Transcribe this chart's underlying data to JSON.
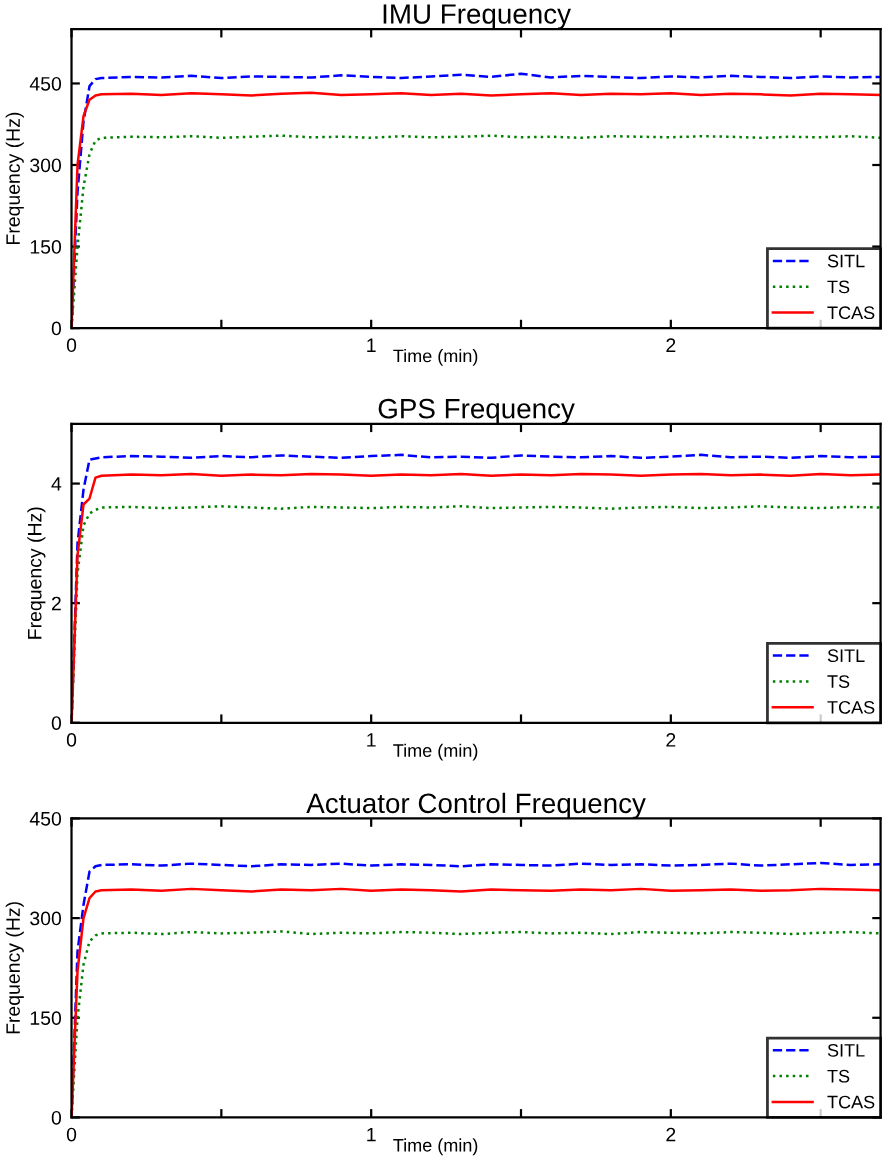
{
  "chart_data": [
    {
      "type": "line",
      "title": "IMU Frequency",
      "xlabel": "Time (min)",
      "ylabel": "Frequency (Hz)",
      "xlim": [
        0,
        2.7
      ],
      "xticks": [
        0,
        {
          "value": 0.5,
          "label": null
        },
        1,
        {
          "value": 1.5,
          "label": null
        },
        2,
        {
          "value": 2.5,
          "label": null
        }
      ],
      "ylim": [
        0,
        550
      ],
      "yticks": [
        0,
        150,
        300,
        450
      ],
      "legend": "bottom right",
      "grid": false,
      "x": [
        0,
        0.02,
        0.04,
        0.06,
        0.08,
        0.1,
        0.2,
        0.3,
        0.4,
        0.5,
        0.6,
        0.7,
        0.8,
        0.9,
        1.0,
        1.1,
        1.2,
        1.3,
        1.4,
        1.5,
        1.6,
        1.7,
        1.8,
        1.9,
        2.0,
        2.1,
        2.2,
        2.3,
        2.4,
        2.5,
        2.6,
        2.7
      ],
      "series": [
        {
          "name": "SITL",
          "color": "#0000ff",
          "line_style": "dashed",
          "values": [
            0,
            250,
            380,
            445,
            458,
            460,
            462,
            461,
            464,
            460,
            463,
            462,
            461,
            465,
            462,
            460,
            463,
            466,
            462,
            468,
            461,
            464,
            462,
            460,
            463,
            461,
            464,
            462,
            460,
            463,
            461,
            462
          ]
        },
        {
          "name": "TS",
          "color": "#008000",
          "line_style": "dotted",
          "values": [
            0,
            150,
            260,
            320,
            345,
            350,
            352,
            351,
            353,
            350,
            352,
            354,
            351,
            352,
            350,
            353,
            351,
            352,
            354,
            351,
            352,
            350,
            353,
            352,
            351,
            353,
            352,
            350,
            352,
            351,
            353,
            350
          ]
        },
        {
          "name": "TCAS",
          "color": "#ff0000",
          "line_style": "solid",
          "values": [
            0,
            300,
            390,
            420,
            428,
            430,
            431,
            429,
            432,
            430,
            428,
            431,
            433,
            429,
            430,
            432,
            429,
            431,
            428,
            430,
            432,
            429,
            431,
            430,
            432,
            429,
            431,
            430,
            428,
            431,
            430,
            429
          ]
        }
      ]
    },
    {
      "type": "line",
      "title": "GPS Frequency",
      "xlabel": "Time (min)",
      "ylabel": "Frequency (Hz)",
      "xlim": [
        0,
        2.7
      ],
      "xticks": [
        0,
        {
          "value": 0.5,
          "label": null
        },
        1,
        {
          "value": 1.5,
          "label": null
        },
        2,
        {
          "value": 2.5,
          "label": null
        }
      ],
      "ylim": [
        0,
        5
      ],
      "yticks": [
        0,
        2,
        4
      ],
      "legend": "bottom right",
      "grid": false,
      "x": [
        0,
        0.02,
        0.04,
        0.06,
        0.08,
        0.1,
        0.2,
        0.3,
        0.4,
        0.5,
        0.6,
        0.7,
        0.8,
        0.9,
        1.0,
        1.1,
        1.2,
        1.3,
        1.4,
        1.5,
        1.6,
        1.7,
        1.8,
        1.9,
        2.0,
        2.1,
        2.2,
        2.3,
        2.4,
        2.5,
        2.6,
        2.7
      ],
      "series": [
        {
          "name": "SITL",
          "color": "#0000ff",
          "line_style": "dashed",
          "values": [
            0,
            3.0,
            3.9,
            4.4,
            4.42,
            4.44,
            4.46,
            4.45,
            4.43,
            4.46,
            4.44,
            4.47,
            4.45,
            4.43,
            4.46,
            4.48,
            4.44,
            4.45,
            4.43,
            4.47,
            4.45,
            4.44,
            4.46,
            4.43,
            4.45,
            4.48,
            4.44,
            4.45,
            4.43,
            4.46,
            4.44,
            4.45
          ]
        },
        {
          "name": "TS",
          "color": "#008000",
          "line_style": "dotted",
          "values": [
            0,
            2.5,
            3.3,
            3.5,
            3.56,
            3.6,
            3.61,
            3.59,
            3.6,
            3.62,
            3.6,
            3.58,
            3.61,
            3.6,
            3.59,
            3.61,
            3.6,
            3.62,
            3.59,
            3.6,
            3.61,
            3.6,
            3.58,
            3.6,
            3.61,
            3.59,
            3.6,
            3.62,
            3.6,
            3.59,
            3.61,
            3.6
          ]
        },
        {
          "name": "TCAS",
          "color": "#ff0000",
          "line_style": "solid",
          "values": [
            0,
            2.8,
            3.65,
            3.75,
            4.1,
            4.13,
            4.15,
            4.14,
            4.16,
            4.13,
            4.15,
            4.14,
            4.16,
            4.15,
            4.13,
            4.15,
            4.14,
            4.16,
            4.13,
            4.15,
            4.14,
            4.16,
            4.15,
            4.13,
            4.15,
            4.16,
            4.14,
            4.15,
            4.13,
            4.16,
            4.14,
            4.15
          ]
        }
      ]
    },
    {
      "type": "line",
      "title": "Actuator Control Frequency",
      "xlabel": "Time (min)",
      "ylabel": "Frequency (Hz)",
      "xlim": [
        0,
        2.7
      ],
      "xticks": [
        0,
        {
          "value": 0.5,
          "label": null
        },
        1,
        {
          "value": 1.5,
          "label": null
        },
        2,
        {
          "value": 2.5,
          "label": null
        }
      ],
      "ylim": [
        0,
        450
      ],
      "yticks": [
        0,
        150,
        300,
        450
      ],
      "legend": "bottom right",
      "grid": false,
      "x": [
        0,
        0.02,
        0.04,
        0.06,
        0.08,
        0.1,
        0.2,
        0.3,
        0.4,
        0.5,
        0.6,
        0.7,
        0.8,
        0.9,
        1.0,
        1.1,
        1.2,
        1.3,
        1.4,
        1.5,
        1.6,
        1.7,
        1.8,
        1.9,
        2.0,
        2.1,
        2.2,
        2.3,
        2.4,
        2.5,
        2.6,
        2.7
      ],
      "series": [
        {
          "name": "SITL",
          "color": "#0000ff",
          "line_style": "dashed",
          "values": [
            0,
            250,
            320,
            370,
            378,
            380,
            381,
            379,
            382,
            380,
            378,
            381,
            380,
            382,
            379,
            381,
            380,
            378,
            381,
            380,
            379,
            382,
            380,
            381,
            379,
            380,
            382,
            379,
            381,
            383,
            380,
            381
          ]
        },
        {
          "name": "TS",
          "color": "#008000",
          "line_style": "dotted",
          "values": [
            0,
            150,
            230,
            265,
            274,
            277,
            278,
            276,
            279,
            277,
            278,
            280,
            276,
            278,
            277,
            279,
            278,
            276,
            278,
            279,
            277,
            278,
            276,
            279,
            278,
            277,
            279,
            278,
            276,
            278,
            279,
            277
          ]
        },
        {
          "name": "TCAS",
          "color": "#ff0000",
          "line_style": "solid",
          "values": [
            0,
            220,
            300,
            330,
            340,
            342,
            343,
            341,
            344,
            342,
            340,
            343,
            342,
            344,
            341,
            343,
            342,
            340,
            343,
            342,
            341,
            343,
            342,
            344,
            341,
            342,
            343,
            341,
            342,
            344,
            343,
            342
          ]
        }
      ]
    }
  ]
}
